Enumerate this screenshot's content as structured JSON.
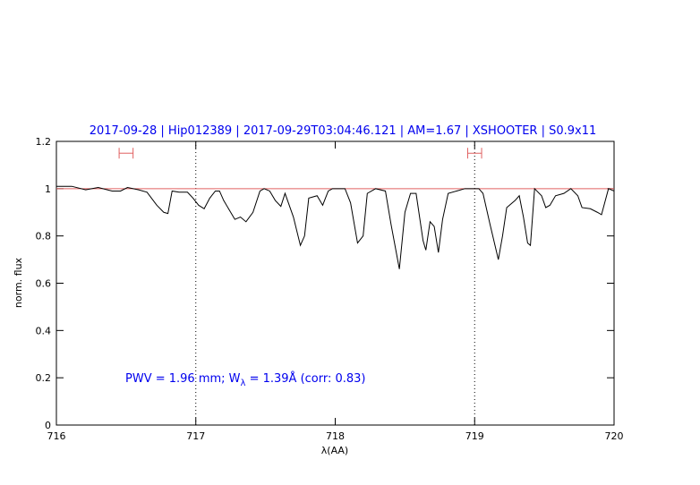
{
  "chart_data": {
    "type": "line",
    "title": "2017-09-28 | Hip012389 | 2017-09-29T03:04:46.121 | AM=1.67 | XSHOOTER | S0.9x11",
    "xlabel": "λ(AA)",
    "ylabel": "norm. flux",
    "annotation": {
      "text": "PWV = 1.96 mm; W",
      "subscript": "λ",
      "rest": " = 1.39Å  (corr: 0.83)"
    },
    "xlim": [
      716,
      720
    ],
    "ylim": [
      0,
      1.2
    ],
    "xticks": [
      716,
      717,
      718,
      719,
      720
    ],
    "yticks": [
      0,
      0.2,
      0.4,
      0.6,
      0.8,
      1,
      1.2
    ],
    "vlines": [
      717,
      719
    ],
    "continuum": 1,
    "intervals": [
      {
        "x": [
          716.45,
          716.55
        ],
        "y": 1.15
      },
      {
        "x": [
          718.95,
          719.05
        ],
        "y": 1.15
      }
    ],
    "series": [
      {
        "color": "#000000",
        "x": [
          716.0,
          716.11,
          716.21,
          716.3,
          716.4,
          716.46,
          716.51,
          716.59,
          716.65,
          716.72,
          716.77,
          716.8,
          716.83,
          716.88,
          716.94,
          716.98,
          717.02,
          717.06,
          717.1,
          717.14,
          717.17,
          717.2,
          717.25,
          717.28,
          717.32,
          717.36,
          717.41,
          717.46,
          717.49,
          717.53,
          717.57,
          717.61,
          717.64,
          717.7,
          717.75,
          717.78,
          717.81,
          717.87,
          717.91,
          717.95,
          717.98,
          718.07,
          718.11,
          718.16,
          718.2,
          718.23,
          718.29,
          718.36,
          718.4,
          718.46,
          718.5,
          718.54,
          718.58,
          718.63,
          718.65,
          718.68,
          718.71,
          718.74,
          718.77,
          718.81,
          718.87,
          718.93,
          719.03,
          719.06,
          719.11,
          719.17,
          719.2,
          719.23,
          719.29,
          719.32,
          719.35,
          719.38,
          719.4,
          719.43,
          719.48,
          719.51,
          719.54,
          719.58,
          719.64,
          719.69,
          719.74,
          719.77,
          719.83,
          719.88,
          719.91,
          719.96,
          720.0
        ],
        "values": [
          1.01,
          1.01,
          0.995,
          1.005,
          0.99,
          0.99,
          1.005,
          0.995,
          0.985,
          0.93,
          0.9,
          0.895,
          0.99,
          0.985,
          0.985,
          0.96,
          0.93,
          0.915,
          0.96,
          0.99,
          0.99,
          0.95,
          0.9,
          0.87,
          0.88,
          0.86,
          0.9,
          0.99,
          1.0,
          0.99,
          0.95,
          0.925,
          0.98,
          0.88,
          0.76,
          0.8,
          0.96,
          0.97,
          0.93,
          0.99,
          1.0,
          1.0,
          0.94,
          0.77,
          0.8,
          0.98,
          1.0,
          0.99,
          0.85,
          0.66,
          0.9,
          0.98,
          0.98,
          0.78,
          0.74,
          0.86,
          0.84,
          0.73,
          0.87,
          0.98,
          0.99,
          1.0,
          1.0,
          0.98,
          0.85,
          0.7,
          0.8,
          0.92,
          0.95,
          0.97,
          0.88,
          0.77,
          0.76,
          1.0,
          0.97,
          0.92,
          0.93,
          0.97,
          0.98,
          1.0,
          0.97,
          0.92,
          0.915,
          0.9,
          0.89,
          1.0,
          0.99
        ]
      }
    ],
    "line_color": "#e06060",
    "text_color": "#0000ee"
  }
}
